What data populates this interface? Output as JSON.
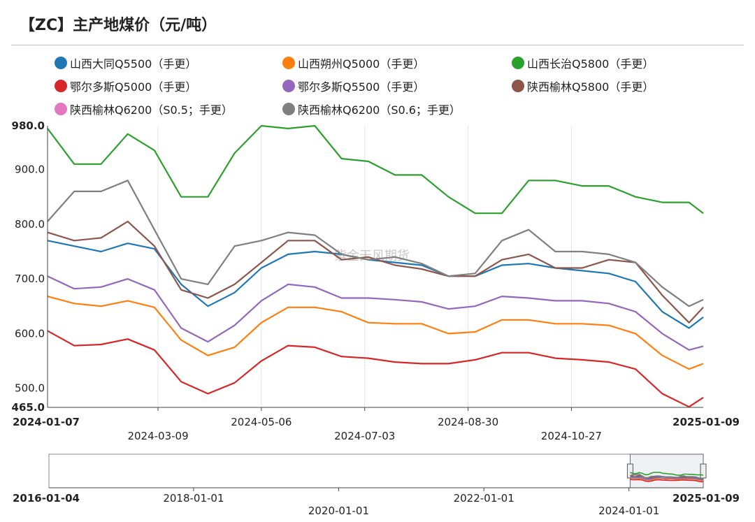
{
  "title": "【ZC】主产地煤价（元/吨）",
  "watermark": "紫金天风期货",
  "legend": [
    {
      "label": "山西大同Q5500（手更）",
      "color": "#1f77b4"
    },
    {
      "label": "山西朔州Q5000（手更）",
      "color": "#ff7f0e"
    },
    {
      "label": "山西长治Q5800（手更）",
      "color": "#2ca02c"
    },
    {
      "label": "鄂尔多斯Q5000（手更）",
      "color": "#d62728"
    },
    {
      "label": "鄂尔多斯Q5500（手更）",
      "color": "#9467bd"
    },
    {
      "label": "陕西榆林Q5800（手更）",
      "color": "#8c564b"
    },
    {
      "label": "陕西榆林Q6200（S0.5；手更）",
      "color": "#e377c2"
    },
    {
      "label": "陕西榆林Q6200（S0.6；手更）",
      "color": "#7f7f7f"
    }
  ],
  "chart_data": {
    "type": "line",
    "title": "【ZC】主产地煤价（元/吨）",
    "xlabel": "",
    "ylabel": "",
    "ylim": [
      465,
      980
    ],
    "yticks": [
      "500.0",
      "600.0",
      "700.0",
      "800.0",
      "900.0"
    ],
    "ymin_label": "465.0",
    "ymax_label": "980.0",
    "xrange": [
      "2024-01-07",
      "2025-01-09"
    ],
    "xticks": [
      "2024-03-09",
      "2024-05-06",
      "2024-07-03",
      "2024-08-30",
      "2024-10-27"
    ],
    "x_start_label": "2024-01-07",
    "x_end_label": "2025-01-09",
    "grid": "vertical",
    "legend_position": "top",
    "x": [
      "2024-01-07",
      "2024-01-22",
      "2024-02-06",
      "2024-02-21",
      "2024-03-07",
      "2024-03-22",
      "2024-04-06",
      "2024-04-21",
      "2024-05-06",
      "2024-05-21",
      "2024-06-05",
      "2024-06-20",
      "2024-07-05",
      "2024-07-20",
      "2024-08-04",
      "2024-08-19",
      "2024-09-03",
      "2024-09-18",
      "2024-10-03",
      "2024-10-18",
      "2024-11-02",
      "2024-11-17",
      "2024-12-02",
      "2024-12-17",
      "2025-01-01",
      "2025-01-09"
    ],
    "series": [
      {
        "name": "山西大同Q5500（手更）",
        "color": "#1f77b4",
        "values": [
          770,
          760,
          750,
          765,
          755,
          690,
          650,
          675,
          720,
          745,
          750,
          745,
          735,
          730,
          725,
          705,
          705,
          725,
          728,
          720,
          715,
          710,
          695,
          640,
          610,
          630
        ]
      },
      {
        "name": "山西朔州Q5000（手更）",
        "color": "#ff7f0e",
        "values": [
          668,
          655,
          650,
          660,
          648,
          588,
          560,
          575,
          620,
          648,
          648,
          640,
          620,
          618,
          618,
          600,
          603,
          625,
          625,
          618,
          618,
          615,
          600,
          560,
          535,
          545
        ]
      },
      {
        "name": "山西长治Q5800（手更）",
        "color": "#2ca02c",
        "values": [
          975,
          910,
          910,
          965,
          935,
          850,
          850,
          930,
          980,
          975,
          980,
          920,
          915,
          890,
          890,
          850,
          820,
          820,
          880,
          880,
          870,
          870,
          850,
          840,
          840,
          820
        ]
      },
      {
        "name": "鄂尔多斯Q5000（手更）",
        "color": "#d62728",
        "values": [
          605,
          578,
          580,
          590,
          570,
          512,
          490,
          510,
          550,
          578,
          575,
          558,
          555,
          548,
          545,
          545,
          552,
          565,
          565,
          555,
          552,
          548,
          535,
          490,
          466,
          483
        ]
      },
      {
        "name": "鄂尔多斯Q5500（手更）",
        "color": "#9467bd",
        "values": [
          705,
          682,
          685,
          700,
          680,
          610,
          585,
          615,
          660,
          690,
          685,
          665,
          665,
          662,
          658,
          645,
          650,
          668,
          665,
          660,
          660,
          655,
          640,
          600,
          570,
          577
        ]
      },
      {
        "name": "陕西榆林Q5800（手更）",
        "color": "#8c564b",
        "values": [
          785,
          770,
          775,
          805,
          760,
          680,
          665,
          690,
          730,
          770,
          770,
          735,
          740,
          725,
          718,
          705,
          705,
          735,
          745,
          720,
          720,
          735,
          730,
          670,
          620,
          648
        ]
      },
      {
        "name": "陕西榆林Q6200（S0.5；手更）",
        "color": "#e377c2",
        "values": [
          null,
          null,
          null,
          null,
          null,
          null,
          null,
          null,
          null,
          null,
          null,
          null,
          null,
          null,
          null,
          null,
          null,
          null,
          null,
          null,
          null,
          null,
          null,
          null,
          null,
          null
        ]
      },
      {
        "name": "陕西榆林Q6200（S0.6；手更）",
        "color": "#7f7f7f",
        "values": [
          805,
          860,
          860,
          880,
          790,
          700,
          690,
          760,
          770,
          785,
          780,
          745,
          735,
          740,
          728,
          705,
          710,
          770,
          790,
          750,
          750,
          745,
          730,
          685,
          650,
          662
        ]
      }
    ]
  },
  "navigator": {
    "xticks": [
      "2018-01-01",
      "2020-01-01",
      "2022-01-01",
      "2024-01-01"
    ],
    "x_start_label": "2016-01-04",
    "x_end_label": "2025-01-09"
  }
}
